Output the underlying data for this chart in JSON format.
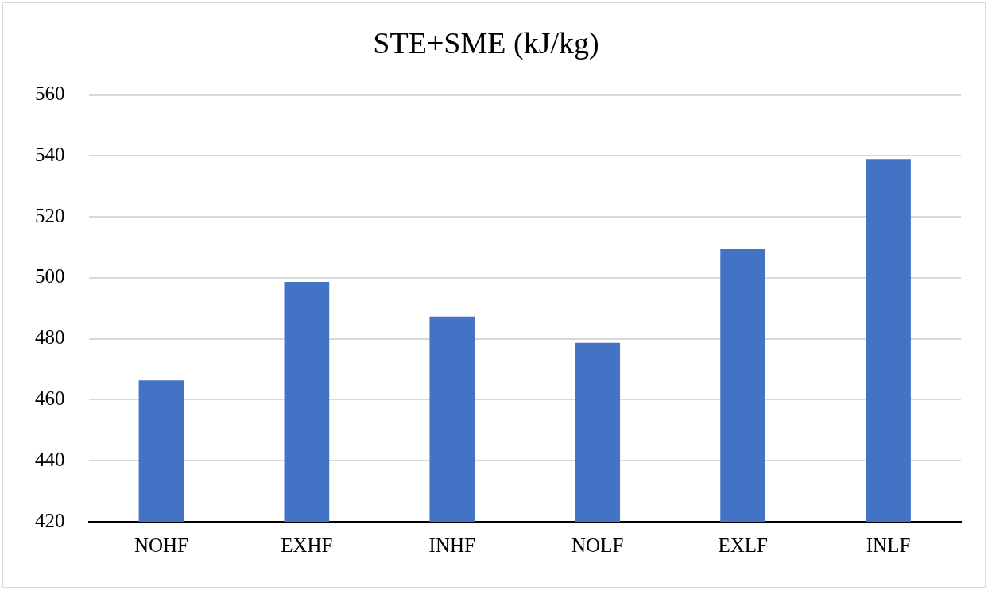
{
  "chart_data": {
    "type": "bar",
    "title": "STE+SME (kJ/kg)",
    "categories": [
      "NOHF",
      "EXHF",
      "INHF",
      "NOLF",
      "EXLF",
      "INLF"
    ],
    "values": [
      466.3,
      498.7,
      487.3,
      478.7,
      509.5,
      539
    ],
    "color": "#4472c4",
    "ylim": [
      420,
      560
    ],
    "yticks": [
      420,
      440,
      460,
      480,
      500,
      520,
      540,
      560
    ],
    "grid": "y"
  }
}
